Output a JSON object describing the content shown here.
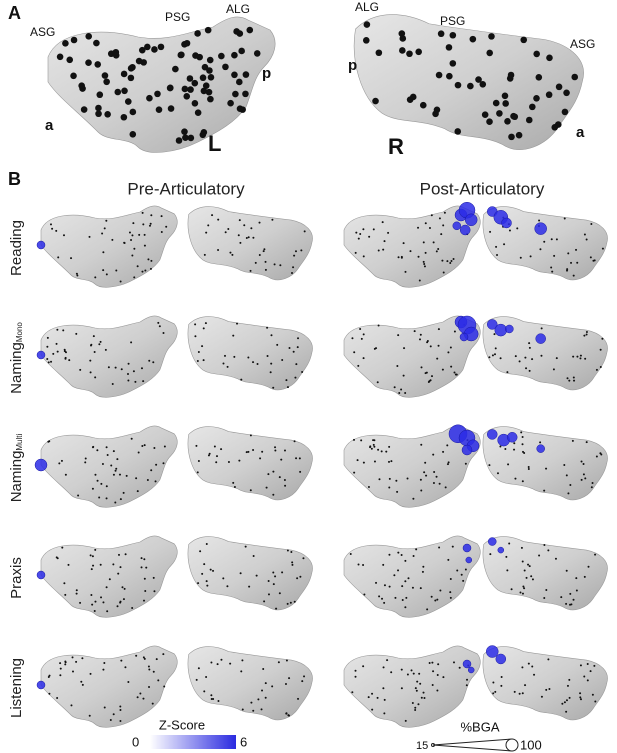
{
  "panel_a": {
    "label": "A",
    "left": {
      "regions": [
        "ASG",
        "PSG",
        "ALG",
        "p",
        "a"
      ],
      "side": "L"
    },
    "right": {
      "regions": [
        "ALG",
        "PSG",
        "ASG",
        "p",
        "a"
      ],
      "side": "R"
    }
  },
  "panel_b": {
    "label": "B",
    "columns": [
      "Pre-Articulatory",
      "Post-Articulatory"
    ],
    "rows": [
      {
        "label": "Reading"
      },
      {
        "label": "Naming",
        "sub": "Mono"
      },
      {
        "label": "Naming",
        "sub": "Multi"
      },
      {
        "label": "Praxis"
      },
      {
        "label": "Listening"
      }
    ],
    "zscore_legend": {
      "title": "Z-Score",
      "min": 0,
      "max": 6
    },
    "bga_legend": {
      "title": "%BGA",
      "min": 15,
      "max": 100
    }
  }
}
